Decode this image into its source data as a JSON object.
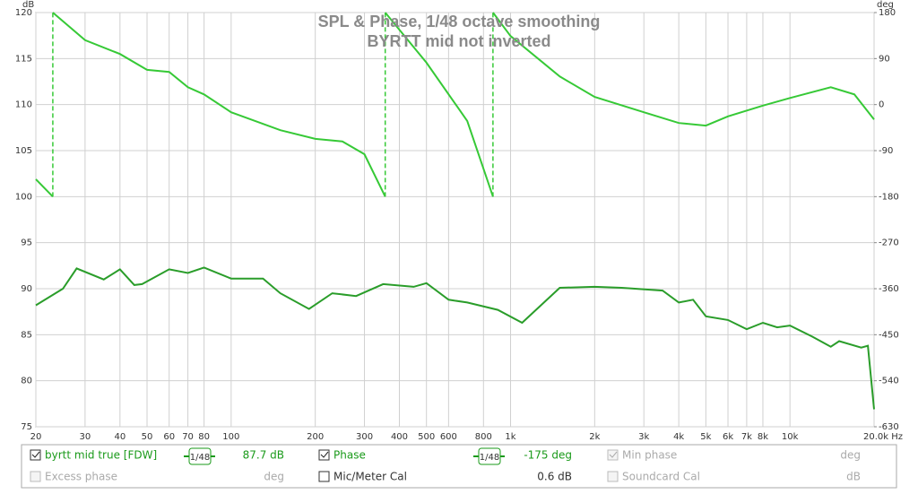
{
  "chart_data": {
    "type": "line",
    "title": "SPL & Phase, 1/48 octave smoothing",
    "subtitle": "BYRTT mid not inverted",
    "ylabel": "dB",
    "y2label": "deg",
    "xscale": "log",
    "grid": true,
    "xlim": [
      20,
      20000
    ],
    "ylim": [
      75,
      120
    ],
    "y2lim": [
      -630,
      180
    ],
    "xticks": [
      20,
      30,
      40,
      50,
      60,
      70,
      80,
      100,
      200,
      300,
      400,
      500,
      600,
      800,
      {
        "value": 1000,
        "label": "1k"
      },
      {
        "value": 2000,
        "label": "2k"
      },
      {
        "value": 3000,
        "label": "3k"
      },
      {
        "value": 4000,
        "label": "4k"
      },
      {
        "value": 5000,
        "label": "5k"
      },
      {
        "value": 6000,
        "label": "6k"
      },
      {
        "value": 7000,
        "label": "7k"
      },
      {
        "value": 8000,
        "label": "8k"
      },
      {
        "value": 10000,
        "label": "10k"
      },
      {
        "value": 20000,
        "label": "20.0k Hz"
      }
    ],
    "yticks": [
      75,
      80,
      85,
      90,
      95,
      100,
      105,
      110,
      115,
      120
    ],
    "y2ticks": [
      -630,
      -540,
      -450,
      -360,
      -270,
      -180,
      -90,
      0,
      90,
      180
    ],
    "series": [
      {
        "name": "byrtt mid true [FDW]",
        "color": "#2a9d2a",
        "x": [
          20,
          25,
          28,
          35,
          40,
          45,
          48,
          60,
          70,
          80,
          100,
          130,
          150,
          190,
          230,
          280,
          350,
          450,
          500,
          600,
          700,
          900,
          1100,
          1500,
          2000,
          2500,
          3500,
          4000,
          4500,
          5000,
          6000,
          7000,
          8000,
          9000,
          10000,
          12000,
          14000,
          15000,
          18000,
          19000,
          20000
        ],
        "values": [
          88.2,
          90,
          92.2,
          91,
          92.1,
          90.4,
          90.5,
          92.1,
          91.7,
          92.3,
          91.1,
          91.1,
          89.5,
          87.8,
          89.5,
          89.2,
          90.5,
          90.2,
          90.6,
          88.8,
          88.5,
          87.7,
          86.3,
          90.1,
          90.2,
          90.1,
          89.8,
          88.5,
          88.8,
          87,
          86.6,
          85.6,
          86.3,
          85.8,
          86,
          84.8,
          83.7,
          84.3,
          83.6,
          83.8,
          76.9
        ]
      },
      {
        "name": "Phase",
        "color": "#36c936",
        "axis": "y2",
        "x": [
          20,
          23,
          23,
          23,
          30,
          40,
          50,
          60,
          70,
          80,
          100,
          150,
          200,
          250,
          300,
          356,
          356,
          356,
          500,
          700,
          865,
          865,
          865,
          1000,
          1500,
          2000,
          3000,
          4000,
          5000,
          6000,
          8000,
          10000,
          14000,
          17000,
          20000
        ],
        "values": [
          -146,
          -180,
          null,
          180,
          126,
          99,
          68,
          64,
          34,
          20,
          -15,
          -50,
          -67,
          -72,
          -97,
          -180,
          null,
          180,
          82,
          -32,
          -180,
          null,
          180,
          134,
          55,
          15,
          -15,
          -36,
          -41,
          -23,
          -2,
          13,
          34,
          20,
          -29
        ]
      }
    ]
  },
  "controls": {
    "row1": {
      "spl_name": "byrtt mid true [FDW]",
      "spl_smoothing": "1/48",
      "spl_value": "87.7 dB",
      "phase_name": "Phase",
      "phase_smoothing": "1/48",
      "phase_value": "-175 deg",
      "minphase_name": "Min phase",
      "minphase_unit": "deg"
    },
    "row2": {
      "excess_name": "Excess phase",
      "excess_unit": "deg",
      "mic_name": "Mic/Meter Cal",
      "mic_value": "0.6 dB",
      "soundcard_name": "Soundcard Cal",
      "soundcard_unit": "dB"
    }
  }
}
